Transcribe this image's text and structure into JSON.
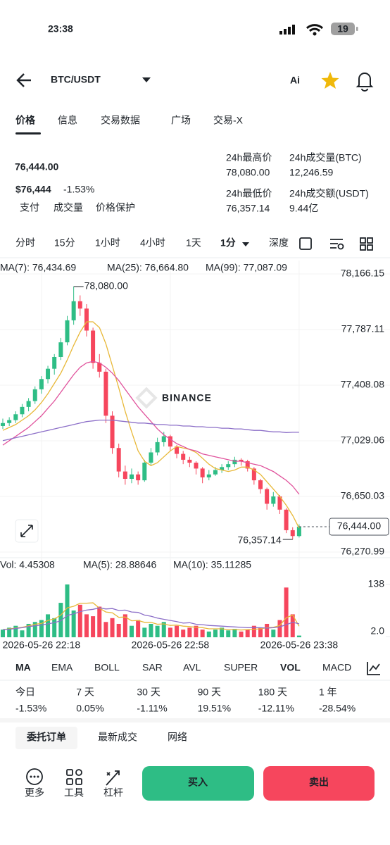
{
  "status_bar": {
    "time": "23:38",
    "battery": "19"
  },
  "header": {
    "pair": "BTC/USDT",
    "ai": "Ai"
  },
  "tabs": [
    "价格",
    "信息",
    "交易数据",
    "广场",
    "交易-X"
  ],
  "price": {
    "last": "76,444.00",
    "usd": "$76,444",
    "change": "-1.53%",
    "tags": [
      "支付",
      "成交量",
      "价格保护"
    ]
  },
  "stats": [
    {
      "label": "24h最高价",
      "value": "78,080.00"
    },
    {
      "label": "24h成交量(BTC)",
      "value": "12,246.59"
    },
    {
      "label": "24h最低价",
      "value": "76,357.14"
    },
    {
      "label": "24h成交额(USDT)",
      "value": "9.44亿"
    }
  ],
  "intervals": [
    "分时",
    "15分",
    "1小时",
    "4小时",
    "1天",
    "1分",
    "深度"
  ],
  "chart_data": {
    "type": "candlestick",
    "watermark": "BINANCE",
    "grid": true,
    "up_color": "#2ebd85",
    "down_color": "#f6465d",
    "ylim": [
      76270.99,
      78166.15
    ],
    "yticks": [
      {
        "value": 78166.15,
        "label": "78,166.15"
      },
      {
        "value": 77787.11,
        "label": "77,787.11"
      },
      {
        "value": 77408.08,
        "label": "77,408.08"
      },
      {
        "value": 77029.06,
        "label": "77,029.06"
      },
      {
        "value": 76650.03,
        "label": "76,650.03"
      },
      {
        "value": 76270.99,
        "label": "76,270.99"
      }
    ],
    "categories": [
      null,
      null,
      null,
      null,
      null,
      null,
      "2026-05-26 22:18",
      null,
      null,
      null,
      null,
      null,
      null,
      null,
      null,
      null,
      null,
      null,
      null,
      null,
      null,
      null,
      null,
      null,
      null,
      null,
      "2026-05-26 22:58",
      null,
      null,
      null,
      null,
      null,
      null,
      null,
      null,
      null,
      null,
      null,
      null,
      null,
      null,
      null,
      null,
      null,
      null,
      null,
      "2026-05-26 23:38"
    ],
    "candles": [
      [
        77130,
        77180,
        77110,
        77150
      ],
      [
        77150,
        77190,
        77130,
        77170
      ],
      [
        77170,
        77230,
        77150,
        77210
      ],
      [
        77210,
        77280,
        77190,
        77260
      ],
      [
        77260,
        77320,
        77230,
        77300
      ],
      [
        77300,
        77400,
        77280,
        77380
      ],
      [
        77380,
        77470,
        77350,
        77450
      ],
      [
        77450,
        77540,
        77420,
        77520
      ],
      [
        77520,
        77620,
        77480,
        77600
      ],
      [
        77600,
        77730,
        77580,
        77700
      ],
      [
        77700,
        77880,
        77680,
        77850
      ],
      [
        77850,
        78080,
        77820,
        77980
      ],
      [
        77980,
        78020,
        77880,
        77930
      ],
      [
        77930,
        77960,
        77740,
        77780
      ],
      [
        77780,
        77800,
        77520,
        77560
      ],
      [
        77560,
        77620,
        77460,
        77500
      ],
      [
        77500,
        77520,
        77150,
        77200
      ],
      [
        77200,
        77230,
        76940,
        76980
      ],
      [
        76980,
        77010,
        76780,
        76820
      ],
      [
        76820,
        76860,
        76730,
        76770
      ],
      [
        76770,
        76840,
        76740,
        76800
      ],
      [
        76800,
        76820,
        76730,
        76760
      ],
      [
        76760,
        76900,
        76750,
        76880
      ],
      [
        76880,
        76980,
        76860,
        76950
      ],
      [
        76950,
        77050,
        76930,
        77020
      ],
      [
        77020,
        77090,
        76990,
        77060
      ],
      [
        77060,
        77070,
        76960,
        76990
      ],
      [
        76990,
        77000,
        76910,
        76940
      ],
      [
        76940,
        76960,
        76870,
        76900
      ],
      [
        76900,
        76920,
        76850,
        76880
      ],
      [
        76880,
        76890,
        76800,
        76840
      ],
      [
        76840,
        76850,
        76740,
        76780
      ],
      [
        76780,
        76830,
        76760,
        76800
      ],
      [
        76800,
        76850,
        76790,
        76830
      ],
      [
        76830,
        76870,
        76810,
        76850
      ],
      [
        76850,
        76890,
        76830,
        76870
      ],
      [
        76870,
        76920,
        76850,
        76900
      ],
      [
        76900,
        76910,
        76860,
        76890
      ],
      [
        76890,
        76900,
        76820,
        76840
      ],
      [
        76840,
        76850,
        76730,
        76760
      ],
      [
        76760,
        76770,
        76670,
        76700
      ],
      [
        76700,
        76710,
        76560,
        76600
      ],
      [
        76600,
        76680,
        76580,
        76650
      ],
      [
        76650,
        76660,
        76530,
        76560
      ],
      [
        76560,
        76570,
        76400,
        76420
      ],
      [
        76420,
        76440,
        76357.14,
        76380
      ],
      [
        76380,
        76460,
        76370,
        76444
      ]
    ],
    "series": [
      {
        "name": "MA(7): 76,434.69",
        "color": "#e8b838",
        "values": [
          77100,
          77120,
          77140,
          77170,
          77200,
          77240,
          77290,
          77350,
          77420,
          77490,
          77580,
          77680,
          77770,
          77840,
          77840,
          77800,
          77690,
          77540,
          77390,
          77230,
          77090,
          76960,
          76890,
          76860,
          76880,
          76920,
          76960,
          76990,
          76980,
          76970,
          76950,
          76910,
          76870,
          76840,
          76830,
          76820,
          76830,
          76850,
          76850,
          76830,
          76800,
          76750,
          76700,
          76650,
          76590,
          76520,
          76434.69
        ]
      },
      {
        "name": "MA(25): 76,664.80",
        "color": "#e0529c",
        "values": [
          77000,
          77030,
          77060,
          77090,
          77120,
          77160,
          77200,
          77250,
          77300,
          77360,
          77420,
          77480,
          77530,
          77560,
          77570,
          77560,
          77530,
          77490,
          77440,
          77380,
          77320,
          77260,
          77210,
          77160,
          77110,
          77070,
          77040,
          77010,
          76990,
          76970,
          76960,
          76940,
          76930,
          76920,
          76910,
          76900,
          76890,
          76890,
          76880,
          76870,
          76860,
          76840,
          76820,
          76790,
          76760,
          76720,
          76664.8
        ]
      },
      {
        "name": "MA(99): 77,087.09",
        "color": "#8c6fc8",
        "values": [
          77030,
          77040,
          77050,
          77060,
          77070,
          77080,
          77090,
          77100,
          77110,
          77120,
          77130,
          77140,
          77150,
          77160,
          77165,
          77170,
          77170,
          77170,
          77165,
          77160,
          77155,
          77150,
          77150,
          77145,
          77140,
          77140,
          77135,
          77135,
          77130,
          77130,
          77125,
          77125,
          77120,
          77120,
          77115,
          77115,
          77110,
          77110,
          77105,
          77100,
          77100,
          77095,
          77090,
          77090,
          77085,
          77087.09,
          77087.09
        ]
      }
    ],
    "high_label": {
      "value": 78080,
      "label": "78,080.00"
    },
    "low_label": {
      "value": 76357.14,
      "label": "76,357.14"
    },
    "last_price": {
      "value": 76444,
      "label": "76,444.00"
    },
    "volume": {
      "label": "Vol: 4.45308",
      "ylim": [
        0,
        138
      ],
      "yticks": [
        138,
        {
          "value": 2,
          "label": "2.0"
        }
      ],
      "values": [
        20,
        25,
        30,
        18,
        35,
        40,
        45,
        60,
        50,
        90,
        138,
        70,
        85,
        60,
        55,
        80,
        40,
        50,
        35,
        60,
        30,
        45,
        25,
        35,
        30,
        40,
        25,
        30,
        20,
        25,
        30,
        20,
        15,
        20,
        25,
        18,
        22,
        15,
        20,
        30,
        25,
        35,
        20,
        45,
        130,
        60,
        4.45308
      ],
      "series": [
        {
          "name": "MA(5): 28.88646",
          "color": "#e8b838",
          "values": [
            20,
            22,
            24,
            26,
            30,
            34,
            36,
            44,
            48,
            58,
            77,
            81,
            89,
            89,
            90,
            76,
            66,
            64,
            52,
            53,
            43,
            44,
            39,
            39,
            34,
            35,
            31,
            32,
            29,
            28,
            26,
            25,
            22,
            22,
            22,
            20,
            20,
            19,
            20,
            21,
            22,
            25,
            26,
            31,
            51,
            58,
            28.88646
          ]
        },
        {
          "name": "MA(10): 35.11285",
          "color": "#8c6fc8",
          "values": [
            20,
            21,
            23,
            25,
            28,
            30,
            32,
            35,
            38,
            43,
            57,
            61,
            67,
            71,
            73,
            77,
            74,
            75,
            70,
            71,
            66,
            65,
            58,
            55,
            50,
            47,
            44,
            41,
            37,
            38,
            34,
            33,
            31,
            30,
            29,
            28,
            27,
            26,
            25,
            25,
            25,
            24,
            25,
            27,
            33,
            39,
            35.11285
          ]
        }
      ]
    }
  },
  "indicators": [
    "MA",
    "EMA",
    "BOLL",
    "SAR",
    "AVL",
    "SUPER",
    "VOL",
    "MACD"
  ],
  "performance": [
    {
      "period": "今日",
      "change": "-1.53%"
    },
    {
      "period": "7 天",
      "change": "0.05%"
    },
    {
      "period": "30 天",
      "change": "-1.11%"
    },
    {
      "period": "90 天",
      "change": "19.51%"
    },
    {
      "period": "180 天",
      "change": "-12.11%"
    },
    {
      "period": "1 年",
      "change": "-28.54%"
    }
  ],
  "bottom_tabs": [
    "委托订单",
    "最新成交",
    "网络"
  ],
  "tools": [
    "更多",
    "工具",
    "杠杆"
  ],
  "actions": {
    "buy": "买入",
    "sell": "卖出"
  }
}
